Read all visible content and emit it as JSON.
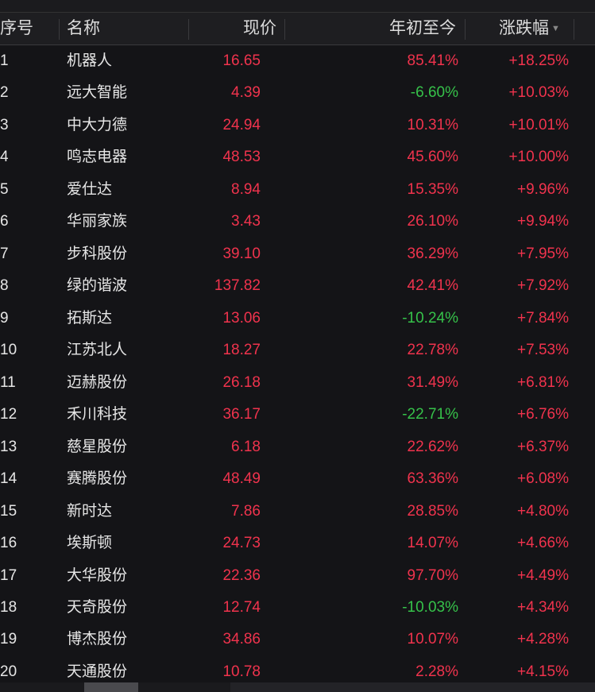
{
  "header": {
    "index": "序号",
    "name": "名称",
    "price": "现价",
    "ytd": "年初至今",
    "change": "涨跌幅",
    "sort_icon": "caret-down-icon"
  },
  "colors": {
    "up": "#f0334d",
    "down": "#36c24a",
    "background": "#141417"
  },
  "rows": [
    {
      "index": "1",
      "name": "机器人",
      "price": "16.65",
      "ytd": "85.41%",
      "change": "+18.25%"
    },
    {
      "index": "2",
      "name": "远大智能",
      "price": "4.39",
      "ytd": "-6.60%",
      "change": "+10.03%"
    },
    {
      "index": "3",
      "name": "中大力德",
      "price": "24.94",
      "ytd": "10.31%",
      "change": "+10.01%"
    },
    {
      "index": "4",
      "name": "鸣志电器",
      "price": "48.53",
      "ytd": "45.60%",
      "change": "+10.00%"
    },
    {
      "index": "5",
      "name": "爱仕达",
      "price": "8.94",
      "ytd": "15.35%",
      "change": "+9.96%"
    },
    {
      "index": "6",
      "name": "华丽家族",
      "price": "3.43",
      "ytd": "26.10%",
      "change": "+9.94%"
    },
    {
      "index": "7",
      "name": "步科股份",
      "price": "39.10",
      "ytd": "36.29%",
      "change": "+7.95%"
    },
    {
      "index": "8",
      "name": "绿的谐波",
      "price": "137.82",
      "ytd": "42.41%",
      "change": "+7.92%"
    },
    {
      "index": "9",
      "name": "拓斯达",
      "price": "13.06",
      "ytd": "-10.24%",
      "change": "+7.84%"
    },
    {
      "index": "10",
      "name": "江苏北人",
      "price": "18.27",
      "ytd": "22.78%",
      "change": "+7.53%"
    },
    {
      "index": "11",
      "name": "迈赫股份",
      "price": "26.18",
      "ytd": "31.49%",
      "change": "+6.81%"
    },
    {
      "index": "12",
      "name": "禾川科技",
      "price": "36.17",
      "ytd": "-22.71%",
      "change": "+6.76%"
    },
    {
      "index": "13",
      "name": "慈星股份",
      "price": "6.18",
      "ytd": "22.62%",
      "change": "+6.37%"
    },
    {
      "index": "14",
      "name": "赛腾股份",
      "price": "48.49",
      "ytd": "63.36%",
      "change": "+6.08%"
    },
    {
      "index": "15",
      "name": "新时达",
      "price": "7.86",
      "ytd": "28.85%",
      "change": "+4.80%"
    },
    {
      "index": "16",
      "name": "埃斯顿",
      "price": "24.73",
      "ytd": "14.07%",
      "change": "+4.66%"
    },
    {
      "index": "17",
      "name": "大华股份",
      "price": "22.36",
      "ytd": "97.70%",
      "change": "+4.49%"
    },
    {
      "index": "18",
      "name": "天奇股份",
      "price": "12.74",
      "ytd": "-10.03%",
      "change": "+4.34%"
    },
    {
      "index": "19",
      "name": "博杰股份",
      "price": "34.86",
      "ytd": "10.07%",
      "change": "+4.28%"
    },
    {
      "index": "20",
      "name": "天通股份",
      "price": "10.78",
      "ytd": "2.28%",
      "change": "+4.15%"
    }
  ]
}
